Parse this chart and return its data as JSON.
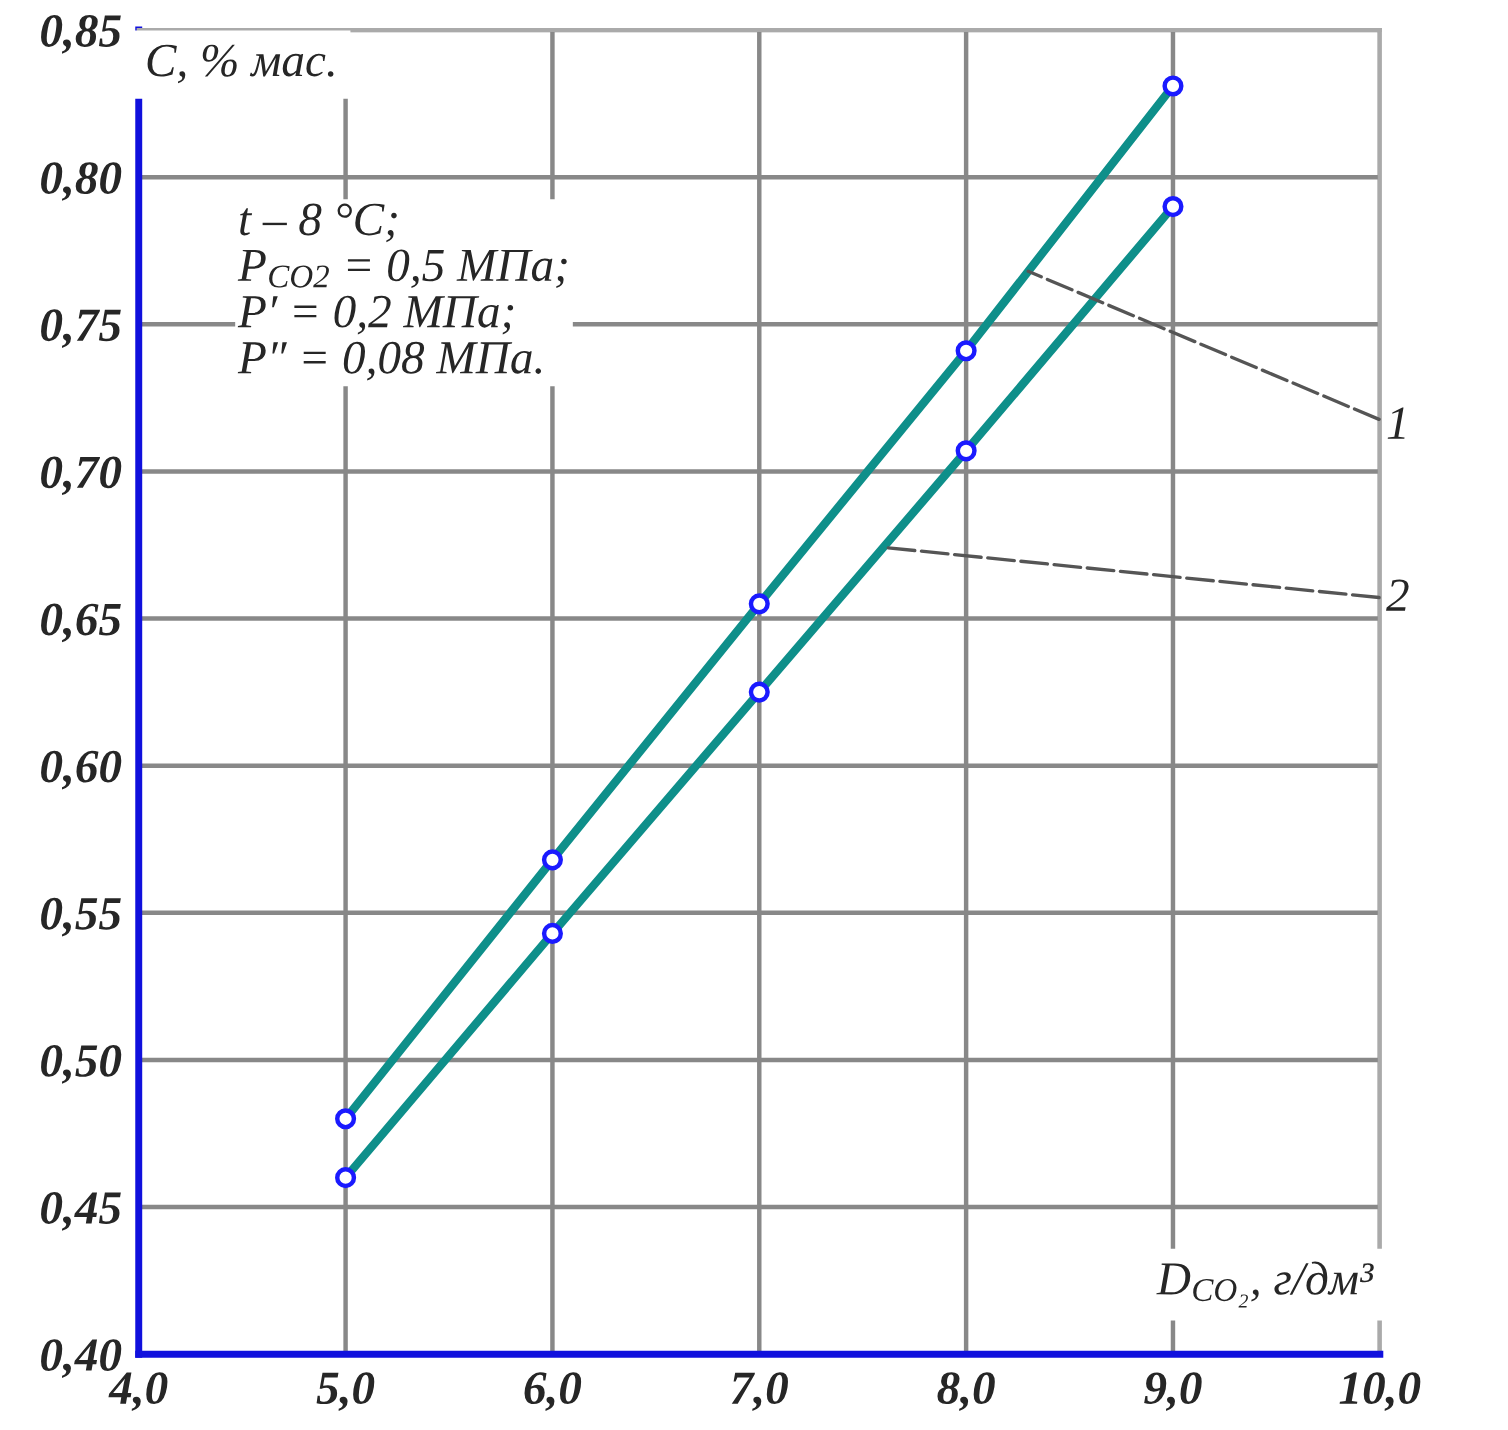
{
  "chart_data": {
    "type": "line",
    "ylabel": "C, % мас.",
    "xlabel": "D$_{CO₂}$, г/дм³",
    "annotations": [
      "t – 8 °C;\nP$_{CO2}$ = 0,5 МПа;\nP′ = 0,2 МПа;\nP″ = 0,08 МПа."
    ],
    "x": [
      5.0,
      6.0,
      7.0,
      8.0,
      9.0
    ],
    "series": [
      {
        "name": "1",
        "color": "#0e8f8a",
        "values": [
          0.48,
          0.568,
          0.655,
          0.741,
          0.831
        ]
      },
      {
        "name": "2",
        "color": "#0e8f8a",
        "values": [
          0.46,
          0.543,
          0.625,
          0.707,
          0.79
        ]
      }
    ],
    "xlim": [
      4.0,
      10.0
    ],
    "xticks": [
      {
        "value": 4.0,
        "label": "4,0"
      },
      {
        "value": 5.0,
        "label": "5,0"
      },
      {
        "value": 6.0,
        "label": "6,0"
      },
      {
        "value": 7.0,
        "label": "7,0"
      },
      {
        "value": 8.0,
        "label": "8,0"
      },
      {
        "value": 9.0,
        "label": "9,0"
      },
      {
        "value": 10.0,
        "label": "10,0"
      }
    ],
    "ylim": [
      0.4,
      0.85
    ],
    "yticks": [
      {
        "value": 0.4,
        "label": "0,40"
      },
      {
        "value": 0.45,
        "label": "0,45"
      },
      {
        "value": 0.5,
        "label": "0,50"
      },
      {
        "value": 0.55,
        "label": "0,55"
      },
      {
        "value": 0.6,
        "label": "0,60"
      },
      {
        "value": 0.65,
        "label": "0,65"
      },
      {
        "value": 0.7,
        "label": "0,70"
      },
      {
        "value": 0.75,
        "label": "0,75"
      },
      {
        "value": 0.8,
        "label": "0,80"
      },
      {
        "value": 0.85,
        "label": "0,85"
      }
    ],
    "grid": true,
    "marker": "circle",
    "line_style": "solid"
  }
}
